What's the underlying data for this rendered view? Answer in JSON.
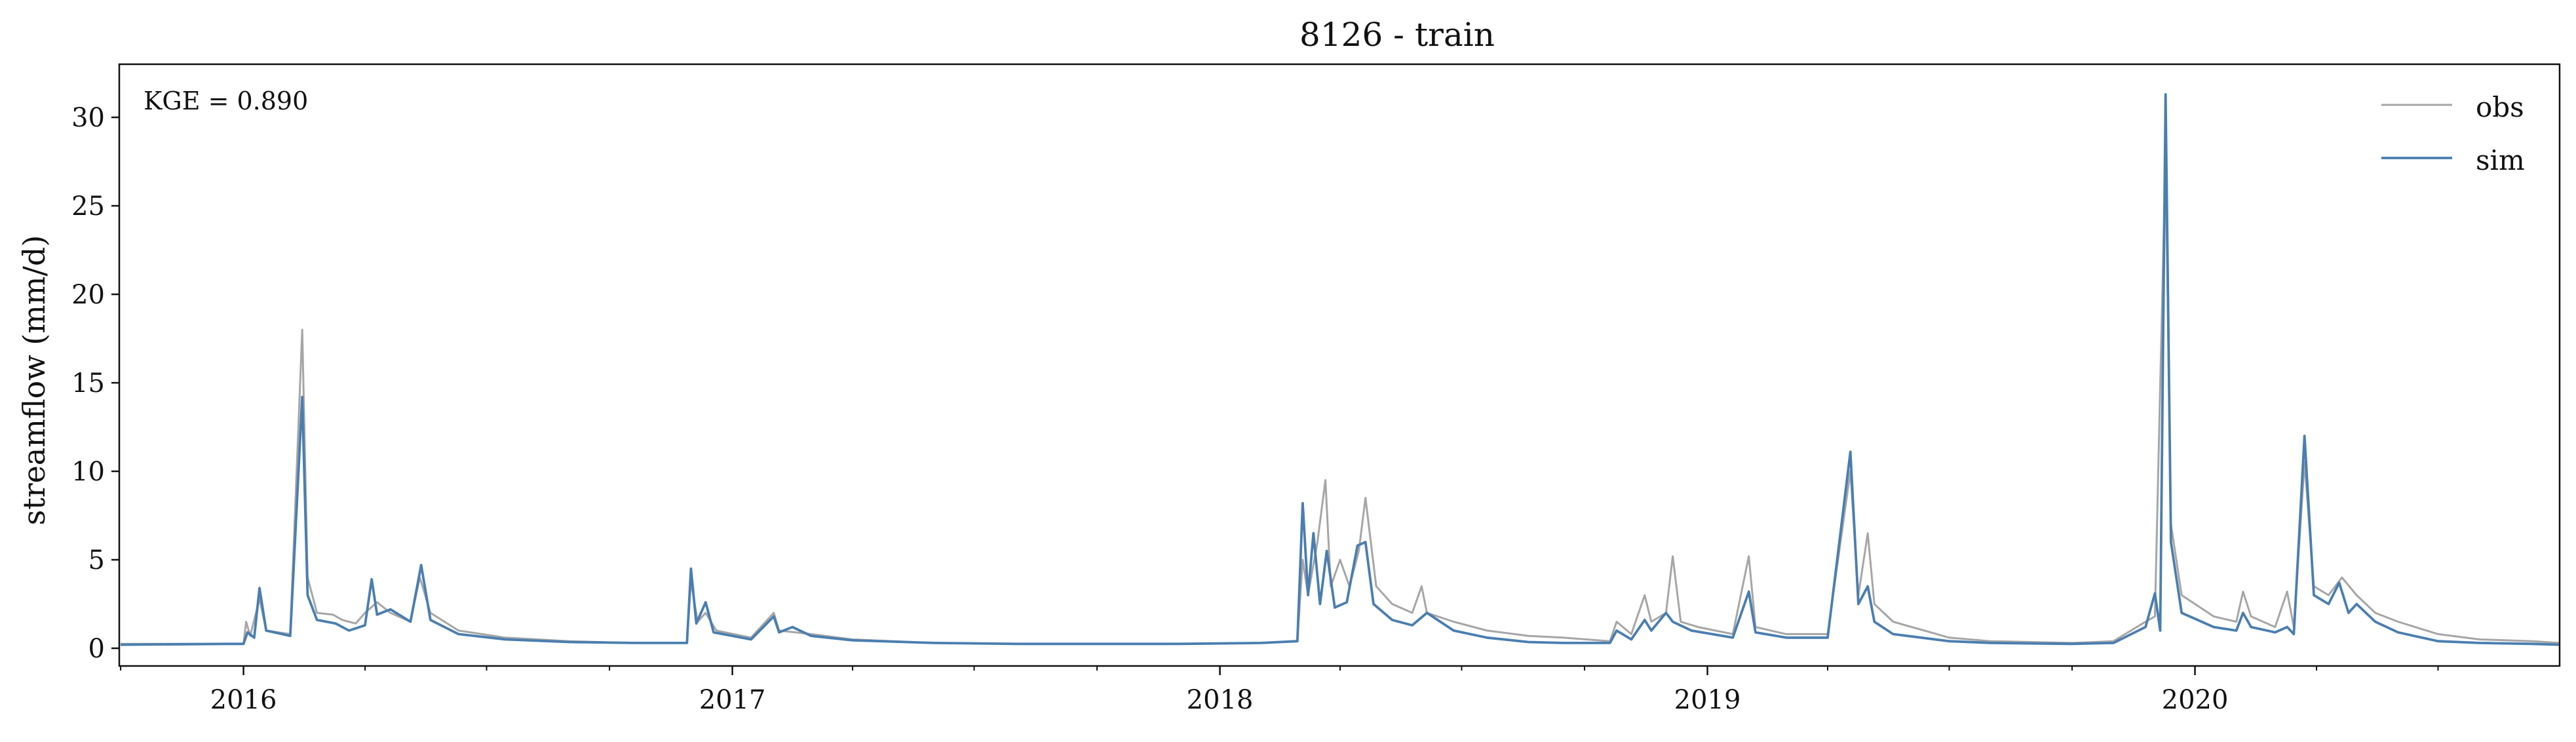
{
  "chart_data": {
    "type": "line",
    "title": "8126 - train",
    "xlabel": "",
    "ylabel": "streamflow (mm/d)",
    "annotation": "KGE = 0.890",
    "legend_position": "top-right",
    "grid": false,
    "xlim": [
      "2015-09-30",
      "2020-09-30"
    ],
    "ylim": [
      -1,
      33
    ],
    "x_ticks": [
      "2016",
      "2017",
      "2018",
      "2019",
      "2020"
    ],
    "y_ticks": [
      "0",
      "5",
      "10",
      "15",
      "20",
      "25",
      "30"
    ],
    "series": [
      {
        "name": "obs",
        "color": "#a6a6a6",
        "points": [
          [
            "2015-10-01",
            0.25
          ],
          [
            "2015-12-20",
            0.25
          ],
          [
            "2016-01-01",
            0.25
          ],
          [
            "2016-01-03",
            1.5
          ],
          [
            "2016-01-06",
            0.7
          ],
          [
            "2016-01-13",
            2.8
          ],
          [
            "2016-01-18",
            1.0
          ],
          [
            "2016-02-05",
            0.8
          ],
          [
            "2016-02-14",
            18.0
          ],
          [
            "2016-02-18",
            4.0
          ],
          [
            "2016-02-25",
            2.0
          ],
          [
            "2016-03-08",
            1.9
          ],
          [
            "2016-03-15",
            1.6
          ],
          [
            "2016-03-25",
            1.4
          ],
          [
            "2016-04-01",
            2.0
          ],
          [
            "2016-04-10",
            2.6
          ],
          [
            "2016-04-20",
            2.0
          ],
          [
            "2016-05-05",
            1.5
          ],
          [
            "2016-05-12",
            4.0
          ],
          [
            "2016-05-20",
            2.0
          ],
          [
            "2016-06-10",
            1.0
          ],
          [
            "2016-07-15",
            0.6
          ],
          [
            "2016-09-01",
            0.4
          ],
          [
            "2016-10-15",
            0.3
          ],
          [
            "2016-11-28",
            0.3
          ],
          [
            "2016-12-01",
            3.8
          ],
          [
            "2016-12-06",
            1.5
          ],
          [
            "2016-12-12",
            2.0
          ],
          [
            "2016-12-20",
            1.0
          ],
          [
            "2017-01-15",
            0.6
          ],
          [
            "2017-02-01",
            2.0
          ],
          [
            "2017-02-05",
            1.0
          ],
          [
            "2017-03-01",
            0.8
          ],
          [
            "2017-04-01",
            0.5
          ],
          [
            "2017-06-01",
            0.3
          ],
          [
            "2017-08-01",
            0.25
          ],
          [
            "2017-10-01",
            0.25
          ],
          [
            "2017-12-01",
            0.25
          ],
          [
            "2018-02-01",
            0.3
          ],
          [
            "2018-02-28",
            0.4
          ],
          [
            "2018-03-04",
            5.0
          ],
          [
            "2018-03-08",
            3.0
          ],
          [
            "2018-03-15",
            6.0
          ],
          [
            "2018-03-21",
            9.5
          ],
          [
            "2018-03-25",
            3.5
          ],
          [
            "2018-04-01",
            5.0
          ],
          [
            "2018-04-08",
            3.5
          ],
          [
            "2018-04-15",
            5.5
          ],
          [
            "2018-04-20",
            8.5
          ],
          [
            "2018-04-28",
            3.5
          ],
          [
            "2018-05-10",
            2.5
          ],
          [
            "2018-05-25",
            2.0
          ],
          [
            "2018-06-01",
            3.5
          ],
          [
            "2018-06-05",
            2.0
          ],
          [
            "2018-06-25",
            1.5
          ],
          [
            "2018-07-20",
            1.0
          ],
          [
            "2018-08-20",
            0.7
          ],
          [
            "2018-09-15",
            0.6
          ],
          [
            "2018-10-20",
            0.4
          ],
          [
            "2018-10-25",
            1.5
          ],
          [
            "2018-11-05",
            0.8
          ],
          [
            "2018-11-15",
            3.0
          ],
          [
            "2018-11-20",
            1.5
          ],
          [
            "2018-12-01",
            2.0
          ],
          [
            "2018-12-06",
            5.2
          ],
          [
            "2018-12-12",
            1.5
          ],
          [
            "2018-12-25",
            1.2
          ],
          [
            "2019-01-20",
            0.8
          ],
          [
            "2019-02-01",
            5.2
          ],
          [
            "2019-02-06",
            1.2
          ],
          [
            "2019-03-01",
            0.8
          ],
          [
            "2019-04-01",
            0.8
          ],
          [
            "2019-04-18",
            10.0
          ],
          [
            "2019-04-24",
            3.0
          ],
          [
            "2019-05-01",
            6.5
          ],
          [
            "2019-05-06",
            2.5
          ],
          [
            "2019-05-20",
            1.5
          ],
          [
            "2019-07-01",
            0.6
          ],
          [
            "2019-08-01",
            0.4
          ],
          [
            "2019-10-01",
            0.3
          ],
          [
            "2019-11-01",
            0.4
          ],
          [
            "2019-11-25",
            1.5
          ],
          [
            "2019-12-02",
            1.8
          ],
          [
            "2019-12-10",
            28.0
          ],
          [
            "2019-12-14",
            7.0
          ],
          [
            "2019-12-22",
            3.0
          ],
          [
            "2020-01-15",
            1.8
          ],
          [
            "2020-02-01",
            1.5
          ],
          [
            "2020-02-06",
            3.2
          ],
          [
            "2020-02-12",
            1.8
          ],
          [
            "2020-03-01",
            1.2
          ],
          [
            "2020-03-10",
            3.2
          ],
          [
            "2020-03-15",
            1.2
          ],
          [
            "2020-03-23",
            10.5
          ],
          [
            "2020-03-30",
            3.5
          ],
          [
            "2020-04-10",
            3.0
          ],
          [
            "2020-04-20",
            4.0
          ],
          [
            "2020-05-01",
            3.0
          ],
          [
            "2020-05-15",
            2.0
          ],
          [
            "2020-06-01",
            1.5
          ],
          [
            "2020-07-01",
            0.8
          ],
          [
            "2020-08-01",
            0.5
          ],
          [
            "2020-09-10",
            0.4
          ],
          [
            "2020-09-30",
            0.3
          ]
        ]
      },
      {
        "name": "sim",
        "color": "#4a7eb0",
        "points": [
          [
            "2015-10-01",
            0.2
          ],
          [
            "2015-12-20",
            0.25
          ],
          [
            "2016-01-01",
            0.25
          ],
          [
            "2016-01-04",
            0.9
          ],
          [
            "2016-01-09",
            0.6
          ],
          [
            "2016-01-13",
            3.4
          ],
          [
            "2016-01-18",
            1.0
          ],
          [
            "2016-02-05",
            0.7
          ],
          [
            "2016-02-14",
            14.2
          ],
          [
            "2016-02-18",
            3.0
          ],
          [
            "2016-02-25",
            1.6
          ],
          [
            "2016-03-10",
            1.4
          ],
          [
            "2016-03-20",
            1.0
          ],
          [
            "2016-04-01",
            1.3
          ],
          [
            "2016-04-06",
            3.9
          ],
          [
            "2016-04-10",
            1.9
          ],
          [
            "2016-04-20",
            2.2
          ],
          [
            "2016-05-05",
            1.5
          ],
          [
            "2016-05-13",
            4.7
          ],
          [
            "2016-05-20",
            1.6
          ],
          [
            "2016-06-10",
            0.8
          ],
          [
            "2016-07-15",
            0.5
          ],
          [
            "2016-09-01",
            0.35
          ],
          [
            "2016-10-20",
            0.3
          ],
          [
            "2016-11-28",
            0.3
          ],
          [
            "2016-12-01",
            4.5
          ],
          [
            "2016-12-05",
            1.4
          ],
          [
            "2016-12-12",
            2.6
          ],
          [
            "2016-12-18",
            0.9
          ],
          [
            "2017-01-15",
            0.5
          ],
          [
            "2017-02-01",
            1.8
          ],
          [
            "2017-02-05",
            0.9
          ],
          [
            "2017-02-15",
            1.2
          ],
          [
            "2017-03-01",
            0.7
          ],
          [
            "2017-04-01",
            0.45
          ],
          [
            "2017-06-01",
            0.3
          ],
          [
            "2017-08-01",
            0.25
          ],
          [
            "2017-10-01",
            0.25
          ],
          [
            "2017-12-01",
            0.25
          ],
          [
            "2018-02-01",
            0.3
          ],
          [
            "2018-02-28",
            0.4
          ],
          [
            "2018-03-04",
            8.2
          ],
          [
            "2018-03-08",
            3.0
          ],
          [
            "2018-03-12",
            6.5
          ],
          [
            "2018-03-17",
            2.5
          ],
          [
            "2018-03-22",
            5.5
          ],
          [
            "2018-03-28",
            2.3
          ],
          [
            "2018-04-06",
            2.6
          ],
          [
            "2018-04-14",
            5.8
          ],
          [
            "2018-04-20",
            6.0
          ],
          [
            "2018-04-26",
            2.5
          ],
          [
            "2018-05-10",
            1.6
          ],
          [
            "2018-05-25",
            1.3
          ],
          [
            "2018-06-05",
            2.0
          ],
          [
            "2018-06-25",
            1.0
          ],
          [
            "2018-07-20",
            0.6
          ],
          [
            "2018-08-20",
            0.35
          ],
          [
            "2018-09-15",
            0.3
          ],
          [
            "2018-10-20",
            0.3
          ],
          [
            "2018-10-25",
            1.0
          ],
          [
            "2018-11-05",
            0.5
          ],
          [
            "2018-11-15",
            1.6
          ],
          [
            "2018-11-20",
            1.0
          ],
          [
            "2018-12-01",
            2.0
          ],
          [
            "2018-12-06",
            1.5
          ],
          [
            "2018-12-20",
            1.0
          ],
          [
            "2019-01-20",
            0.6
          ],
          [
            "2019-02-01",
            3.2
          ],
          [
            "2019-02-06",
            0.9
          ],
          [
            "2019-03-01",
            0.6
          ],
          [
            "2019-04-01",
            0.6
          ],
          [
            "2019-04-18",
            11.1
          ],
          [
            "2019-04-24",
            2.5
          ],
          [
            "2019-05-01",
            3.5
          ],
          [
            "2019-05-06",
            1.5
          ],
          [
            "2019-05-20",
            0.8
          ],
          [
            "2019-07-01",
            0.4
          ],
          [
            "2019-08-01",
            0.3
          ],
          [
            "2019-10-01",
            0.25
          ],
          [
            "2019-11-01",
            0.3
          ],
          [
            "2019-11-25",
            1.2
          ],
          [
            "2019-12-02",
            3.1
          ],
          [
            "2019-12-06",
            1.0
          ],
          [
            "2019-12-10",
            31.3
          ],
          [
            "2019-12-14",
            6.0
          ],
          [
            "2019-12-22",
            2.0
          ],
          [
            "2020-01-15",
            1.2
          ],
          [
            "2020-02-01",
            1.0
          ],
          [
            "2020-02-06",
            2.0
          ],
          [
            "2020-02-12",
            1.2
          ],
          [
            "2020-03-01",
            0.9
          ],
          [
            "2020-03-10",
            1.2
          ],
          [
            "2020-03-15",
            0.8
          ],
          [
            "2020-03-23",
            12.0
          ],
          [
            "2020-03-30",
            3.0
          ],
          [
            "2020-04-10",
            2.5
          ],
          [
            "2020-04-18",
            3.7
          ],
          [
            "2020-04-25",
            2.0
          ],
          [
            "2020-05-01",
            2.5
          ],
          [
            "2020-05-15",
            1.5
          ],
          [
            "2020-06-01",
            0.9
          ],
          [
            "2020-07-01",
            0.4
          ],
          [
            "2020-08-01",
            0.3
          ],
          [
            "2020-09-10",
            0.25
          ],
          [
            "2020-09-30",
            0.2
          ]
        ]
      }
    ]
  }
}
